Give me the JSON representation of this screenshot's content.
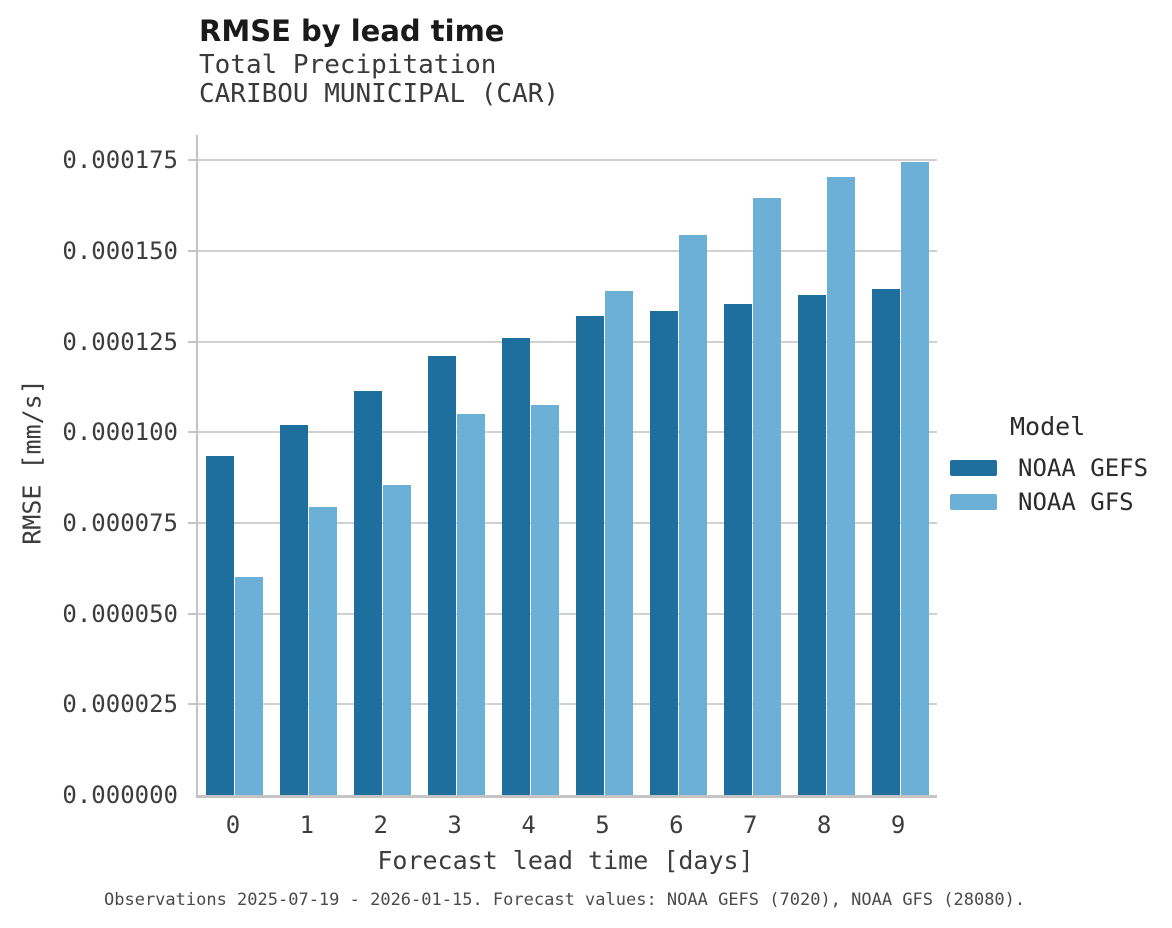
{
  "title": "RMSE by lead time",
  "subtitle_line1": "Total Precipitation",
  "subtitle_line2": "CARIBOU MUNICIPAL (CAR)",
  "caption": "Observations 2025-07-19 - 2026-01-15. Forecast values: NOAA GEFS (7020), NOAA GFS (28080).",
  "legend": {
    "title": "Model"
  },
  "colors": {
    "gefs_dark_blue": "#1e6f9e",
    "gfs_light_blue": "#6cb0d8",
    "gridline_gray": "#d0d0d0",
    "spine_gray": "#c4c4c4"
  },
  "chart_data": {
    "type": "bar",
    "title": "RMSE by lead time",
    "subtitle": [
      "Total Precipitation",
      "CARIBOU MUNICIPAL (CAR)"
    ],
    "xlabel": "Forecast lead time [days]",
    "ylabel": "RMSE [mm/s]",
    "legend_title": "Model",
    "legend_position": "right",
    "grid": "horizontal",
    "categories": [
      "0",
      "1",
      "2",
      "3",
      "4",
      "5",
      "6",
      "7",
      "8",
      "9"
    ],
    "series": [
      {
        "name": "NOAA GEFS",
        "color": "#1e6f9e",
        "values": [
          9.35e-05,
          0.000102,
          0.0001115,
          0.000121,
          0.000126,
          0.000132,
          0.0001335,
          0.0001355,
          0.000138,
          0.0001395
        ]
      },
      {
        "name": "NOAA GFS",
        "color": "#6cb0d8",
        "values": [
          6e-05,
          7.95e-05,
          8.55e-05,
          0.000105,
          0.0001075,
          0.000139,
          0.0001545,
          0.0001645,
          0.0001705,
          0.0001745
        ]
      }
    ],
    "ylim": [
      0,
      0.000182
    ],
    "yticks": [
      0.0,
      2.5e-05,
      5e-05,
      7.5e-05,
      0.0001,
      0.000125,
      0.00015,
      0.000175
    ],
    "ytick_labels": [
      "0.000000",
      "0.000025",
      "0.000050",
      "0.000075",
      "0.000100",
      "0.000125",
      "0.000150",
      "0.000175"
    ]
  }
}
